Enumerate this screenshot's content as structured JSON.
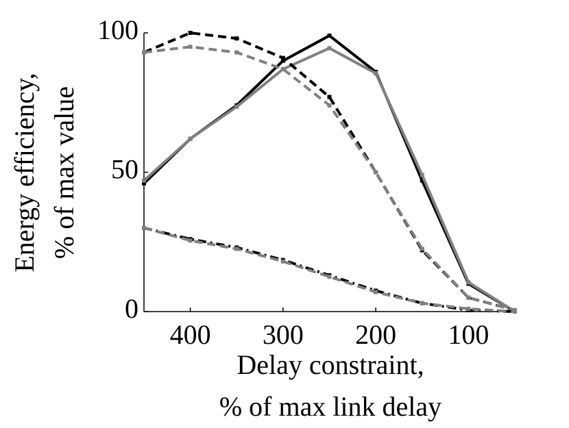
{
  "chart_data": {
    "type": "line",
    "xlabel": [
      "Delay constraint,",
      "% of max link delay"
    ],
    "ylabel": [
      "Energy efficiency,",
      "% of max value"
    ],
    "x": [
      450,
      400,
      350,
      300,
      250,
      200,
      150,
      100,
      50
    ],
    "xlim": [
      450,
      50
    ],
    "xticks": [
      400,
      300,
      200,
      100
    ],
    "ylim": [
      0,
      100
    ],
    "yticks": [
      0,
      50,
      100
    ],
    "series": [
      {
        "color": "#000000",
        "style": "solid",
        "values": [
          46,
          62,
          74,
          90,
          99,
          86,
          47,
          10,
          0
        ]
      },
      {
        "color": "#808080",
        "style": "solid",
        "values": [
          47,
          62,
          73.5,
          87,
          94.5,
          85.5,
          49,
          10.5,
          0
        ]
      },
      {
        "color": "#000000",
        "style": "dashed",
        "values": [
          93,
          100,
          98,
          91,
          77,
          50,
          22,
          5,
          0.5
        ]
      },
      {
        "color": "#808080",
        "style": "dashed",
        "values": [
          93,
          95,
          93,
          87,
          74,
          50,
          22.5,
          5,
          0.5
        ]
      },
      {
        "color": "#000000",
        "style": "dashdot",
        "values": [
          30,
          26,
          23,
          18.5,
          13,
          7.5,
          3,
          0.5,
          0
        ]
      },
      {
        "color": "#808080",
        "style": "dashed",
        "values": [
          30,
          25.5,
          22.5,
          18,
          12.5,
          7,
          3,
          1,
          0
        ]
      }
    ]
  }
}
